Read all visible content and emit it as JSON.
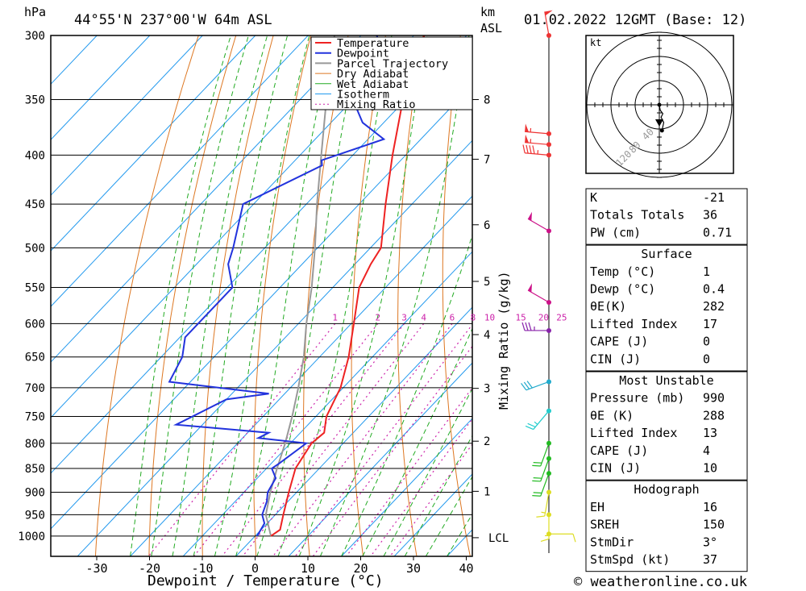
{
  "header": {
    "hpa_label": "hPa",
    "location": "44°55'N  237°00'W  64m  ASL",
    "km_label": "km",
    "asl_label": "ASL",
    "datetime": "01.02.2022  12GMT  (Base: 12)"
  },
  "footer": {
    "copyright": "© weatheronline.co.uk"
  },
  "colors": {
    "temperature": "#ee2222",
    "dewpoint": "#2233dd",
    "parcel": "#999999",
    "dry_adiabat": "#dd7722",
    "wet_adiabat": "#22aa22",
    "isotherm": "#2299ee",
    "mixing_ratio": "#cc22aa"
  },
  "chart_data": {
    "type": "skew-t",
    "xlabel": "Dewpoint / Temperature (°C)",
    "ylabel_right": "Mixing Ratio (g/kg)",
    "x_ticks": [
      -30,
      -20,
      -10,
      0,
      10,
      20,
      30,
      40
    ],
    "pressure_levels": [
      300,
      350,
      400,
      450,
      500,
      550,
      600,
      650,
      700,
      750,
      800,
      850,
      900,
      950,
      1000
    ],
    "km_ticks": [
      {
        "label": "8",
        "p": 350
      },
      {
        "label": "7",
        "p": 404
      },
      {
        "label": "6",
        "p": 473
      },
      {
        "label": "5",
        "p": 542
      },
      {
        "label": "4",
        "p": 616
      },
      {
        "label": "3",
        "p": 701
      },
      {
        "label": "2",
        "p": 796
      },
      {
        "label": "1",
        "p": 898
      },
      {
        "label": "LCL",
        "p": 1004
      }
    ],
    "mixing_ratio_labels": [
      "1",
      "2",
      "3",
      "4",
      "6",
      "8",
      "10",
      "15",
      "20",
      "25"
    ],
    "legend": [
      "Temperature",
      "Dewpoint",
      "Parcel Trajectory",
      "Dry Adiabat",
      "Wet Adiabat",
      "Isotherm",
      "Mixing Ratio"
    ],
    "legend_position": "top-right",
    "temperature": [
      {
        "p": 1000,
        "t": 3
      },
      {
        "p": 985,
        "t": 3.6
      },
      {
        "p": 950,
        "t": 1.5
      },
      {
        "p": 900,
        "t": -1.5
      },
      {
        "p": 850,
        "t": -4.5
      },
      {
        "p": 800,
        "t": -6
      },
      {
        "p": 780,
        "t": -5.5
      },
      {
        "p": 750,
        "t": -8
      },
      {
        "p": 700,
        "t": -10.5
      },
      {
        "p": 650,
        "t": -14.5
      },
      {
        "p": 600,
        "t": -19.5
      },
      {
        "p": 550,
        "t": -25
      },
      {
        "p": 520,
        "t": -27
      },
      {
        "p": 500,
        "t": -28
      },
      {
        "p": 450,
        "t": -35
      },
      {
        "p": 400,
        "t": -42.5
      },
      {
        "p": 350,
        "t": -50.5
      },
      {
        "p": 300,
        "t": -58
      }
    ],
    "dewpoint": [
      {
        "p": 1000,
        "t": 0.4
      },
      {
        "p": 970,
        "t": -0.5
      },
      {
        "p": 950,
        "t": -2.5
      },
      {
        "p": 920,
        "t": -4
      },
      {
        "p": 900,
        "t": -5.5
      },
      {
        "p": 870,
        "t": -6.5
      },
      {
        "p": 850,
        "t": -9
      },
      {
        "p": 840,
        "t": -8.5
      },
      {
        "p": 800,
        "t": -7
      },
      {
        "p": 790,
        "t": -17
      },
      {
        "p": 780,
        "t": -16
      },
      {
        "p": 765,
        "t": -35
      },
      {
        "p": 720,
        "t": -30
      },
      {
        "p": 710,
        "t": -23
      },
      {
        "p": 690,
        "t": -44
      },
      {
        "p": 650,
        "t": -46
      },
      {
        "p": 620,
        "t": -49
      },
      {
        "p": 600,
        "t": -49
      },
      {
        "p": 550,
        "t": -49
      },
      {
        "p": 520,
        "t": -54
      },
      {
        "p": 500,
        "t": -56
      },
      {
        "p": 450,
        "t": -62
      },
      {
        "p": 410,
        "t": -54
      },
      {
        "p": 405,
        "t": -55
      },
      {
        "p": 385,
        "t": -47
      },
      {
        "p": 370,
        "t": -54
      },
      {
        "p": 350,
        "t": -60
      },
      {
        "p": 340,
        "t": -60
      },
      {
        "p": 320,
        "t": -60
      },
      {
        "p": 300,
        "t": -67
      }
    ],
    "parcel": [
      {
        "p": 1000,
        "t": 3
      },
      {
        "p": 950,
        "t": -1.8
      },
      {
        "p": 900,
        "t": -5
      },
      {
        "p": 850,
        "t": -8
      },
      {
        "p": 800,
        "t": -11
      },
      {
        "p": 750,
        "t": -14.5
      },
      {
        "p": 700,
        "t": -18.5
      },
      {
        "p": 650,
        "t": -23
      },
      {
        "p": 600,
        "t": -28.5
      },
      {
        "p": 550,
        "t": -34
      },
      {
        "p": 500,
        "t": -40.5
      },
      {
        "p": 450,
        "t": -48
      },
      {
        "p": 400,
        "t": -56
      },
      {
        "p": 350,
        "t": -65
      },
      {
        "p": 300,
        "t": -75
      }
    ]
  },
  "hodograph": {
    "unit": "kt",
    "ring_labels": [
      "40",
      "80",
      "120"
    ]
  },
  "indices": {
    "general": [
      {
        "label": "K",
        "value": "-21"
      },
      {
        "label": "Totals Totals",
        "value": "36"
      },
      {
        "label": "PW (cm)",
        "value": "0.71"
      }
    ],
    "surface": {
      "title": "Surface",
      "rows": [
        {
          "label": "Temp (°C)",
          "value": "1"
        },
        {
          "label": "Dewp (°C)",
          "value": "0.4"
        },
        {
          "label": "θE(K)",
          "value": "282"
        },
        {
          "label": "Lifted Index",
          "value": "17"
        },
        {
          "label": "CAPE (J)",
          "value": "0"
        },
        {
          "label": "CIN (J)",
          "value": "0"
        }
      ]
    },
    "most_unstable": {
      "title": "Most Unstable",
      "rows": [
        {
          "label": "Pressure (mb)",
          "value": "990"
        },
        {
          "label": "θE (K)",
          "value": "288"
        },
        {
          "label": "Lifted Index",
          "value": "13"
        },
        {
          "label": "CAPE (J)",
          "value": "4"
        },
        {
          "label": "CIN (J)",
          "value": "10"
        }
      ]
    },
    "hodograph_box": {
      "title": "Hodograph",
      "rows": [
        {
          "label": "EH",
          "value": "16"
        },
        {
          "label": "SREH",
          "value": "150"
        },
        {
          "label": "StmDir",
          "value": "3°"
        },
        {
          "label": "StmSpd (kt)",
          "value": "37"
        }
      ]
    }
  },
  "wind_profile": [
    {
      "p": 300,
      "dir": 350,
      "spd": 50,
      "color": "#ee3333"
    },
    {
      "p": 380,
      "dir": 275,
      "spd": 55,
      "color": "#ee3333"
    },
    {
      "p": 390,
      "dir": 275,
      "spd": 55,
      "color": "#ee3333"
    },
    {
      "p": 400,
      "dir": 275,
      "spd": 45,
      "color": "#ee3333"
    },
    {
      "p": 480,
      "dir": 300,
      "spd": 50,
      "color": "#cc1188"
    },
    {
      "p": 570,
      "dir": 300,
      "spd": 50,
      "color": "#cc1188"
    },
    {
      "p": 610,
      "dir": 270,
      "spd": 35,
      "color": "#8822aa"
    },
    {
      "p": 690,
      "dir": 250,
      "spd": 30,
      "color": "#22aacc"
    },
    {
      "p": 740,
      "dir": 220,
      "spd": 25,
      "color": "#22cccc"
    },
    {
      "p": 800,
      "dir": 200,
      "spd": 20,
      "color": "#22bb22"
    },
    {
      "p": 830,
      "dir": 200,
      "spd": 20,
      "color": "#22bb22"
    },
    {
      "p": 860,
      "dir": 200,
      "spd": 20,
      "color": "#22bb22"
    },
    {
      "p": 900,
      "dir": 190,
      "spd": 15,
      "color": "#dddd22"
    },
    {
      "p": 950,
      "dir": 180,
      "spd": 15,
      "color": "#dddd22"
    },
    {
      "p": 995,
      "dir": 90,
      "spd": 10,
      "color": "#dddd22"
    }
  ],
  "hodo_trace": [
    {
      "u": 0,
      "v": 0
    },
    {
      "u": 2,
      "v": -12
    },
    {
      "u": 8,
      "v": -20
    },
    {
      "u": 4,
      "v": -28
    },
    {
      "u": 10,
      "v": -40
    },
    {
      "u": 6,
      "v": -58
    }
  ]
}
